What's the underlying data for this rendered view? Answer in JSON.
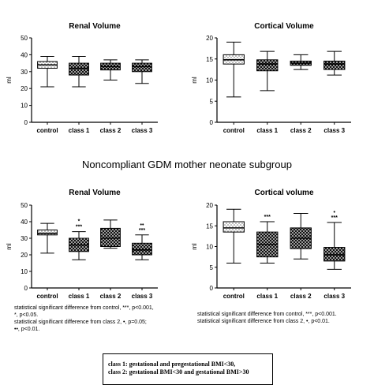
{
  "section_heading": "Noncompliant GDM mother neonate subgroup",
  "notes_left": [
    "statistical significant difference from control, ***, p<0.001,",
    "*, p<0.05.",
    "statistical significant difference from class 2, •, p=0.05;",
    "••, p<0.01."
  ],
  "notes_right": [
    "statistical significant difference from control, ***, p<0.001.",
    "statistical significant difference from class 2, •, p<0.01."
  ],
  "legend_lines": [
    "class 1: gestational and pregestational BMI<30,",
    "class 2: gestational BMI<30 and gestational BMI>30"
  ],
  "chart_data": [
    {
      "type": "box",
      "title": "Renal Volume",
      "ylabel": "ml",
      "ylim": [
        0,
        50
      ],
      "yticks": [
        0,
        10,
        20,
        30,
        40,
        50
      ],
      "categories": [
        "control",
        "class 1",
        "class 2",
        "class 3"
      ],
      "boxes": [
        {
          "min": 21,
          "q1": 32,
          "median": 34,
          "q3": 36,
          "max": 39,
          "fill": "light"
        },
        {
          "min": 21,
          "q1": 28,
          "median": 32,
          "q3": 35,
          "max": 39,
          "fill": "dark"
        },
        {
          "min": 25,
          "q1": 31,
          "median": 33,
          "q3": 35,
          "max": 37,
          "fill": "dark"
        },
        {
          "min": 23,
          "q1": 30,
          "median": 33,
          "q3": 35,
          "max": 37,
          "fill": "dark"
        }
      ],
      "annotations": [
        "",
        "",
        "",
        ""
      ]
    },
    {
      "type": "box",
      "title": "Cortical Volume",
      "ylabel": "ml",
      "ylim": [
        0,
        20
      ],
      "yticks": [
        0,
        5,
        10,
        15,
        20
      ],
      "categories": [
        "control",
        "class 1",
        "class 2",
        "class 3"
      ],
      "boxes": [
        {
          "min": 6,
          "q1": 13.8,
          "median": 14.8,
          "q3": 16,
          "max": 19,
          "fill": "light"
        },
        {
          "min": 7.5,
          "q1": 12.2,
          "median": 13.8,
          "q3": 14.8,
          "max": 16.8,
          "fill": "dark"
        },
        {
          "min": 12.5,
          "q1": 13.5,
          "median": 14,
          "q3": 14.5,
          "max": 16,
          "fill": "dark"
        },
        {
          "min": 11.2,
          "q1": 12.5,
          "median": 13.8,
          "q3": 14.5,
          "max": 16.8,
          "fill": "dark"
        }
      ],
      "annotations": [
        "",
        "",
        "",
        ""
      ]
    },
    {
      "type": "box",
      "title": "Renal Volume",
      "ylabel": "ml",
      "ylim": [
        0,
        50
      ],
      "yticks": [
        0,
        10,
        20,
        30,
        40,
        50
      ],
      "categories": [
        "control",
        "class 1",
        "class 2",
        "class 3"
      ],
      "boxes": [
        {
          "min": 21,
          "q1": 32,
          "median": 33,
          "q3": 35,
          "max": 39,
          "fill": "light"
        },
        {
          "min": 17,
          "q1": 22,
          "median": 26,
          "q3": 30,
          "max": 34,
          "fill": "dark"
        },
        {
          "min": 24,
          "q1": 25,
          "median": 30,
          "q3": 36,
          "max": 41,
          "fill": "dark"
        },
        {
          "min": 17,
          "q1": 20,
          "median": 23,
          "q3": 27,
          "max": 32,
          "fill": "dark"
        }
      ],
      "annotations": [
        "",
        "*\n***",
        "",
        "••\n***"
      ]
    },
    {
      "type": "box",
      "title": "Cortical volume",
      "ylabel": "ml",
      "ylim": [
        0,
        20
      ],
      "yticks": [
        0,
        5,
        10,
        15,
        20
      ],
      "categories": [
        "control",
        "class 1",
        "class 2",
        "class 3"
      ],
      "boxes": [
        {
          "min": 6,
          "q1": 13.5,
          "median": 14.5,
          "q3": 16,
          "max": 19,
          "fill": "light"
        },
        {
          "min": 6,
          "q1": 7.5,
          "median": 10.5,
          "q3": 13.5,
          "max": 16,
          "fill": "dark"
        },
        {
          "min": 7,
          "q1": 9.5,
          "median": 12,
          "q3": 14.5,
          "max": 18,
          "fill": "dark"
        },
        {
          "min": 4.5,
          "q1": 6.5,
          "median": 8,
          "q3": 9.8,
          "max": 15.8,
          "fill": "dark"
        }
      ],
      "annotations": [
        "",
        "***",
        "",
        "•\n***"
      ]
    }
  ]
}
